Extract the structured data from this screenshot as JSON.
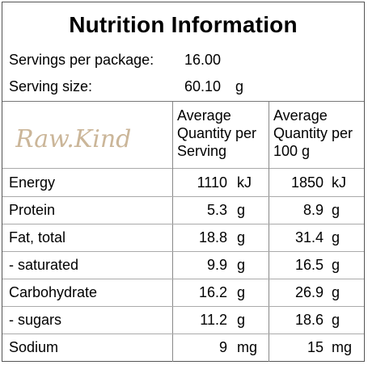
{
  "panel": {
    "title": "Nutrition Information",
    "servings_label": "Servings per package:",
    "servings_value": "16.00",
    "serving_size_label": "Serving size:",
    "serving_size_value": "60.10",
    "serving_size_unit": "g",
    "brand_logo": "Raw.Kind",
    "brand_color": "#cbb699",
    "col_serving_header": [
      "Average",
      "Quantity per",
      "Serving"
    ],
    "col_100g_header": [
      "Average",
      "Quantity per",
      "100 g"
    ],
    "rows": [
      {
        "name": "Energy",
        "serving": "1110",
        "serving_unit": "kJ",
        "per100": "1850",
        "per100_unit": "kJ"
      },
      {
        "name": "Protein",
        "serving": "5.3",
        "serving_unit": "g",
        "per100": "8.9",
        "per100_unit": "g"
      },
      {
        "name": "Fat, total",
        "serving": "18.8",
        "serving_unit": "g",
        "per100": "31.4",
        "per100_unit": "g"
      },
      {
        "name": "- saturated",
        "serving": "9.9",
        "serving_unit": "g",
        "per100": "16.5",
        "per100_unit": "g"
      },
      {
        "name": "Carbohydrate",
        "serving": "16.2",
        "serving_unit": "g",
        "per100": "26.9",
        "per100_unit": "g"
      },
      {
        "name": "- sugars",
        "serving": "11.2",
        "serving_unit": "g",
        "per100": "18.6",
        "per100_unit": "g"
      },
      {
        "name": "Sodium",
        "serving": "9",
        "serving_unit": "mg",
        "per100": "15",
        "per100_unit": "mg"
      }
    ]
  }
}
